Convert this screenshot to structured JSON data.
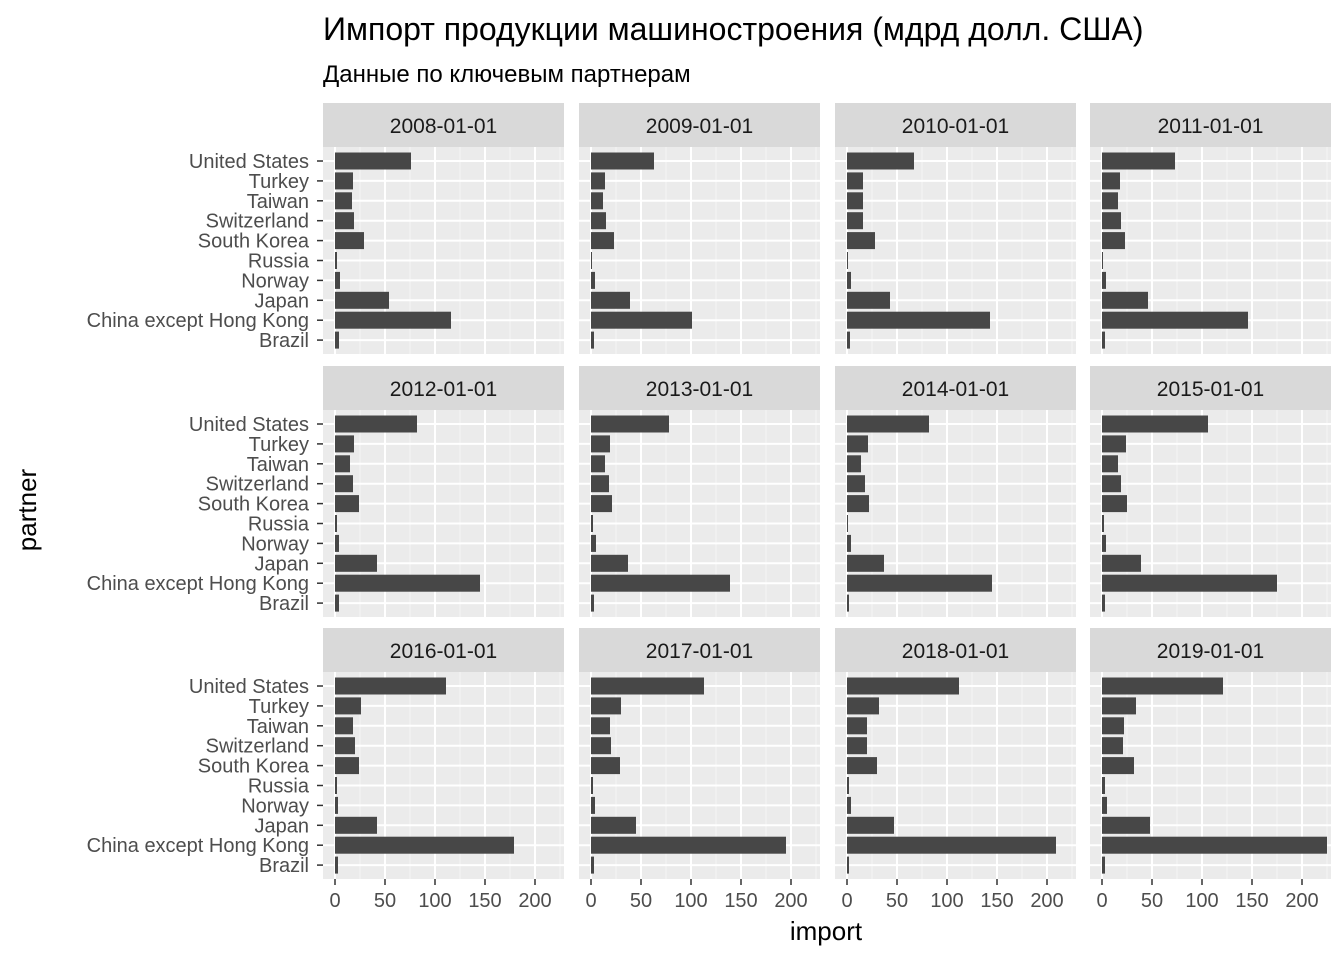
{
  "chart_data": {
    "type": "bar",
    "title": "Импорт продукции машиностроения (мдрд долл. США)",
    "subtitle": "Данные по ключевым партнерам",
    "xlabel": "import",
    "ylabel": "partner",
    "orientation": "horizontal",
    "facet_layout": "4 columns x 3 rows",
    "xlim": [
      0,
      240
    ],
    "xticks": [
      0,
      50,
      100,
      150,
      200
    ],
    "grid": true,
    "legend": "none",
    "colors": {
      "bar": "#474747",
      "panel": "#ebebeb",
      "grid_major": "#ffffff",
      "strip": "#d9d9d9"
    },
    "categories": [
      "United States",
      "Turkey",
      "Taiwan",
      "Switzerland",
      "South Korea",
      "Russia",
      "Norway",
      "Japan",
      "China except Hong Kong",
      "Brazil"
    ],
    "facets": [
      {
        "name": "2008-01-01",
        "values": [
          76,
          18,
          17,
          19,
          29,
          2,
          5,
          54,
          116,
          4
        ]
      },
      {
        "name": "2009-01-01",
        "values": [
          63,
          14,
          12,
          15,
          23,
          1,
          4,
          39,
          101,
          3
        ]
      },
      {
        "name": "2010-01-01",
        "values": [
          67,
          16,
          16,
          16,
          28,
          1,
          4,
          43,
          143,
          3
        ]
      },
      {
        "name": "2011-01-01",
        "values": [
          73,
          18,
          16,
          19,
          23,
          1,
          4,
          46,
          146,
          3
        ]
      },
      {
        "name": "2012-01-01",
        "values": [
          82,
          19,
          15,
          18,
          24,
          2,
          4,
          42,
          145,
          4
        ]
      },
      {
        "name": "2013-01-01",
        "values": [
          78,
          19,
          14,
          18,
          21,
          2,
          5,
          37,
          139,
          3
        ]
      },
      {
        "name": "2014-01-01",
        "values": [
          82,
          21,
          14,
          18,
          22,
          1,
          4,
          37,
          145,
          2
        ]
      },
      {
        "name": "2015-01-01",
        "values": [
          106,
          24,
          16,
          19,
          25,
          2,
          4,
          39,
          175,
          3
        ]
      },
      {
        "name": "2016-01-01",
        "values": [
          111,
          26,
          18,
          20,
          24,
          2,
          3,
          42,
          179,
          3
        ]
      },
      {
        "name": "2017-01-01",
        "values": [
          113,
          30,
          19,
          20,
          29,
          2,
          4,
          45,
          195,
          3
        ]
      },
      {
        "name": "2018-01-01",
        "values": [
          112,
          32,
          20,
          20,
          30,
          2,
          4,
          47,
          209,
          2
        ]
      },
      {
        "name": "2019-01-01",
        "values": [
          121,
          34,
          22,
          21,
          32,
          3,
          5,
          48,
          225,
          3
        ]
      }
    ]
  }
}
